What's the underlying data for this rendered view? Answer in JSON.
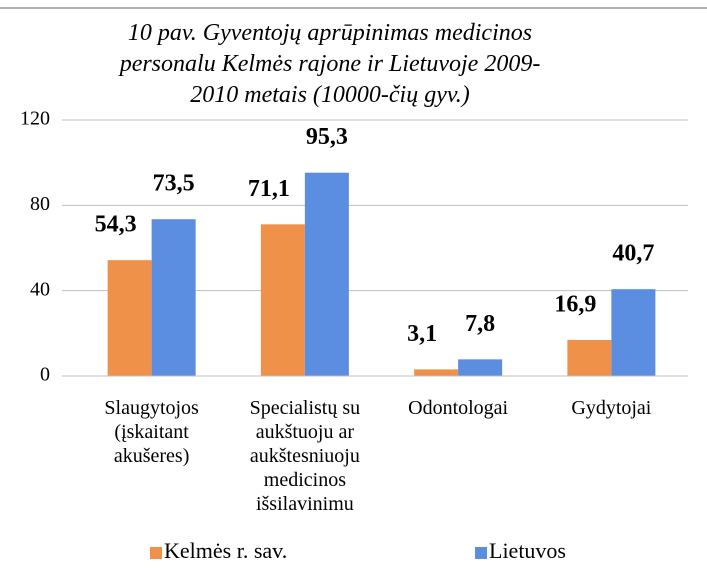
{
  "chart_data": {
    "type": "bar",
    "title": "10 pav. Gyventojų aprūpinimas medicinos\npersonalu Kelmės rajone ir Lietuvoje 2009-\n2010 metais (10000-čių gyv.)",
    "categories": [
      "Slaugytojos\n(įskaitant\nakušeres)",
      "Specialistų su\naukštuoju ar\naukštesniuoju\nmedicinos\nišsilavinimu",
      "Odontologai",
      "Gydytojai"
    ],
    "series": [
      {
        "name": "Kelmės r. sav.",
        "color": "#f0914a",
        "values": [
          54.3,
          71.1,
          3.1,
          16.9
        ],
        "value_labels": [
          "54,3",
          "71,1",
          "3,1",
          "16,9"
        ]
      },
      {
        "name": "Lietuvos",
        "color": "#5b8ee0",
        "values": [
          73.5,
          95.3,
          7.8,
          40.7
        ],
        "value_labels": [
          "73,5",
          "95,3",
          "7,8",
          "40,7"
        ]
      }
    ],
    "ylim": [
      0,
      120
    ],
    "yticks": [
      0,
      40,
      80,
      120
    ],
    "grid": true,
    "legend": "bottom"
  }
}
